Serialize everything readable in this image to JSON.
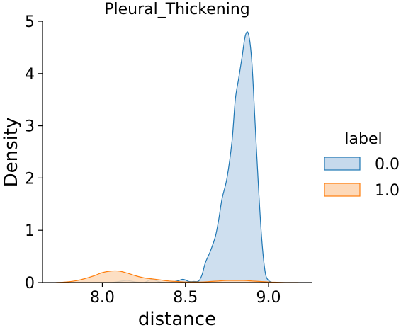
{
  "chart_data": {
    "type": "area",
    "title": "Pleural_Thickening",
    "xlabel": "distance",
    "ylabel": "Density",
    "xlim": [
      7.64,
      9.26
    ],
    "ylim": [
      0,
      5
    ],
    "xticks": [
      8.0,
      8.5,
      9.0
    ],
    "xtick_labels": [
      "8.0",
      "8.5",
      "9.0"
    ],
    "yticks": [
      0,
      1,
      2,
      3,
      4,
      5
    ],
    "ytick_labels": [
      "0",
      "1",
      "2",
      "3",
      "4",
      "5"
    ],
    "grid": false,
    "legend": {
      "title": "label",
      "placement": "right",
      "entries": [
        "0.0",
        "1.0"
      ]
    },
    "series": [
      {
        "name": "0.0",
        "color": "#1f77b4",
        "fill": "#c6d9ec",
        "x": [
          7.94,
          8.0,
          8.05,
          8.1,
          8.15,
          8.2,
          8.25,
          8.28,
          8.3,
          8.35,
          8.4,
          8.45,
          8.48,
          8.5,
          8.52,
          8.55,
          8.58,
          8.6,
          8.62,
          8.65,
          8.68,
          8.7,
          8.72,
          8.75,
          8.78,
          8.8,
          8.82,
          8.84,
          8.86,
          8.88,
          8.9,
          8.92,
          8.94,
          8.96,
          8.98,
          9.0,
          9.03,
          9.06
        ],
        "y": [
          0.0,
          0.0,
          0.0,
          0.02,
          0.04,
          0.01,
          0.0,
          0.04,
          0.06,
          0.01,
          0.0,
          0.03,
          0.06,
          0.05,
          0.02,
          0.02,
          0.03,
          0.15,
          0.38,
          0.6,
          0.88,
          1.2,
          1.6,
          2.0,
          2.7,
          3.5,
          3.9,
          4.3,
          4.72,
          4.75,
          4.2,
          3.0,
          1.8,
          0.8,
          0.2,
          0.04,
          0.0,
          0.0
        ]
      },
      {
        "name": "1.0",
        "color": "#ff7f0e",
        "fill": "#fdd9b9",
        "x": [
          7.72,
          7.78,
          7.85,
          7.9,
          7.95,
          8.0,
          8.05,
          8.1,
          8.15,
          8.2,
          8.25,
          8.3,
          8.35,
          8.4,
          8.45,
          8.5,
          8.55,
          8.6,
          8.65,
          8.7,
          8.75,
          8.8,
          8.85,
          8.9,
          8.95,
          9.0,
          9.05,
          9.1,
          9.18
        ],
        "y": [
          0.0,
          0.01,
          0.04,
          0.08,
          0.13,
          0.19,
          0.22,
          0.22,
          0.18,
          0.13,
          0.09,
          0.07,
          0.05,
          0.03,
          0.02,
          0.01,
          0.01,
          0.01,
          0.02,
          0.03,
          0.04,
          0.04,
          0.04,
          0.03,
          0.02,
          0.01,
          0.005,
          0.0,
          0.0
        ]
      }
    ]
  }
}
